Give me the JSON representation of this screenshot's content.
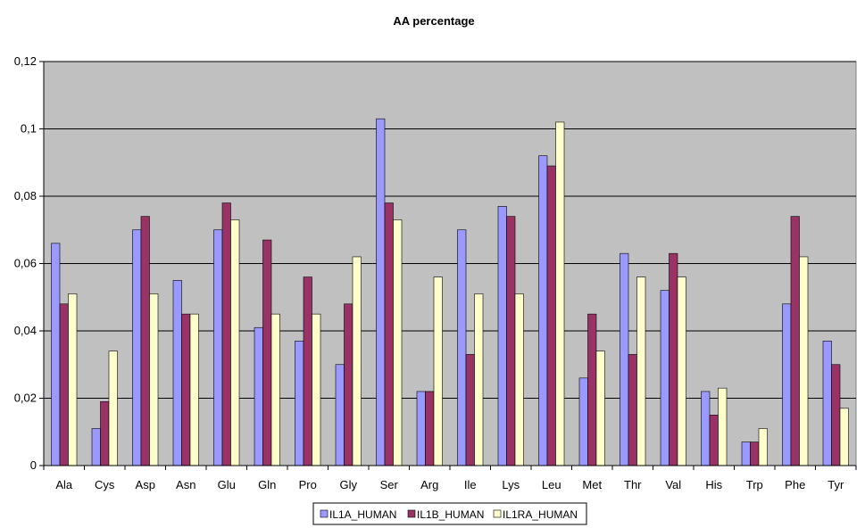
{
  "chart_data": {
    "type": "bar",
    "title": "AA percentage",
    "xlabel": "",
    "ylabel": "",
    "ylim": [
      0,
      0.12
    ],
    "yticks": [
      "0",
      "0,02",
      "0,04",
      "0,06",
      "0,08",
      "0,1",
      "0,12"
    ],
    "grid": true,
    "legend_position": "bottom",
    "categories": [
      "Ala",
      "Cys",
      "Asp",
      "Asn",
      "Glu",
      "Gln",
      "Pro",
      "Gly",
      "Ser",
      "Arg",
      "Ile",
      "Lys",
      "Leu",
      "Met",
      "Thr",
      "Val",
      "His",
      "Trp",
      "Phe",
      "Tyr"
    ],
    "series": [
      {
        "name": "IL1A_HUMAN",
        "color": "#9999ff",
        "values": [
          0.066,
          0.011,
          0.07,
          0.055,
          0.07,
          0.041,
          0.037,
          0.03,
          0.103,
          0.022,
          0.07,
          0.077,
          0.092,
          0.026,
          0.063,
          0.052,
          0.022,
          0.007,
          0.048,
          0.037
        ]
      },
      {
        "name": "IL1B_HUMAN",
        "color": "#993366",
        "values": [
          0.048,
          0.019,
          0.074,
          0.045,
          0.078,
          0.067,
          0.056,
          0.048,
          0.078,
          0.022,
          0.033,
          0.074,
          0.089,
          0.045,
          0.033,
          0.063,
          0.015,
          0.007,
          0.074,
          0.03
        ]
      },
      {
        "name": "IL1RA_HUMAN",
        "color": "#ffffcc",
        "values": [
          0.051,
          0.034,
          0.051,
          0.045,
          0.073,
          0.045,
          0.045,
          0.062,
          0.073,
          0.056,
          0.051,
          0.051,
          0.102,
          0.034,
          0.056,
          0.056,
          0.023,
          0.011,
          0.062,
          0.017
        ]
      }
    ],
    "plot_background": "#c0c0c0"
  }
}
